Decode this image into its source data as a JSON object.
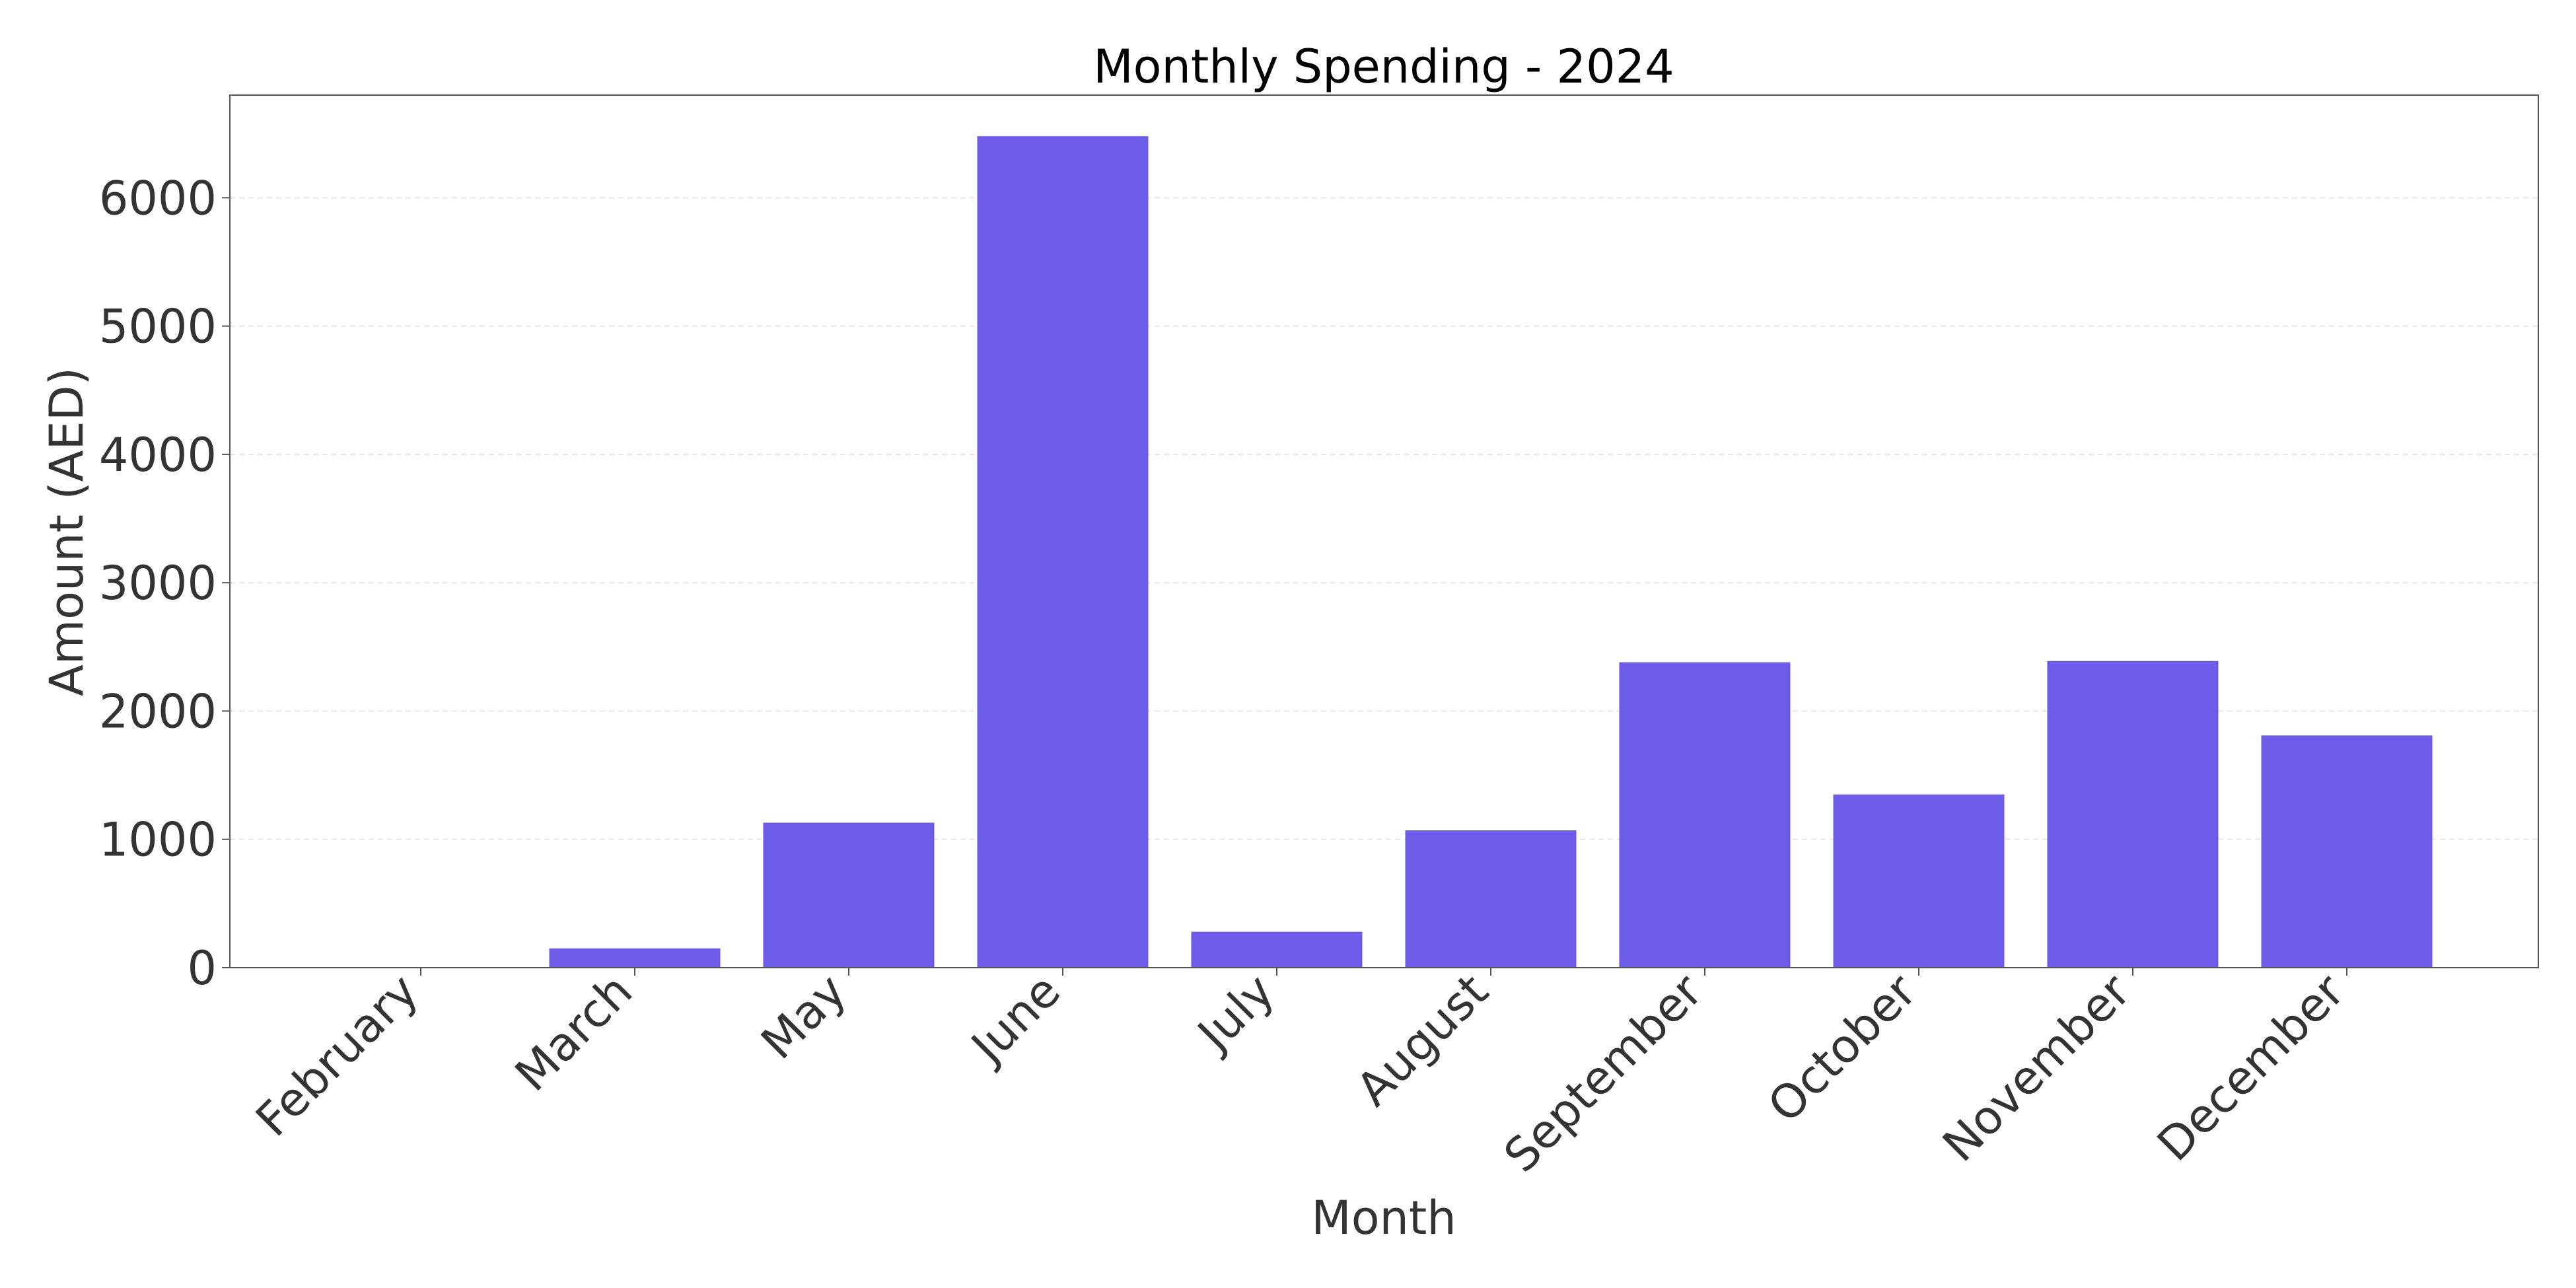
{
  "chart_data": {
    "type": "bar",
    "title": "Monthly Spending - 2024",
    "xlabel": "Month",
    "ylabel": "Amount (AED)",
    "categories": [
      "February",
      "March",
      "May",
      "June",
      "July",
      "August",
      "September",
      "October",
      "November",
      "December"
    ],
    "values": [
      0,
      150,
      1130,
      6480,
      280,
      1070,
      2380,
      1350,
      2390,
      1810
    ],
    "ylim": [
      0,
      6800
    ],
    "yticks": [
      "0",
      "1000",
      "2000",
      "3000",
      "4000",
      "5000",
      "6000"
    ],
    "grid": "y-axis dashed",
    "legend": "none",
    "bar_color": "#6c5ce7",
    "grid_color": "#e6e6e6",
    "axis_color": "#555555"
  }
}
